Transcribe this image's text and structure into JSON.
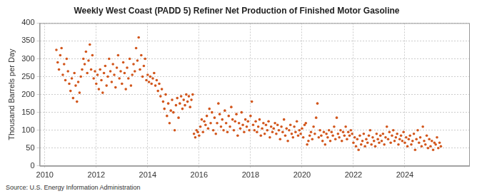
{
  "chart_data": {
    "type": "scatter",
    "title": "Weekly West Coast (PADD 5) Refiner Net Production of Finished Motor Gasoline",
    "y_label": "Thousand Barrels per Day",
    "source": "Source: U.S. Energy Information Administration",
    "color": "#d2561c",
    "marker": "circle",
    "grid": true,
    "xlim": [
      2009.8,
      2026.5
    ],
    "xticks": [
      2010,
      2012,
      2014,
      2016,
      2018,
      2020,
      2022,
      2024
    ],
    "ylim": [
      0,
      400
    ],
    "yticks": [
      0,
      50,
      100,
      150,
      200,
      250,
      300,
      350,
      400
    ],
    "x": [
      2010.45,
      2010.5,
      2010.55,
      2010.6,
      2010.65,
      2010.7,
      2010.75,
      2010.8,
      2010.85,
      2010.9,
      2010.95,
      2011.0,
      2011.05,
      2011.1,
      2011.15,
      2011.2,
      2011.25,
      2011.3,
      2011.35,
      2011.4,
      2011.45,
      2011.5,
      2011.55,
      2011.6,
      2011.65,
      2011.7,
      2011.75,
      2011.8,
      2011.85,
      2011.9,
      2011.95,
      2012.0,
      2012.05,
      2012.1,
      2012.15,
      2012.2,
      2012.25,
      2012.3,
      2012.35,
      2012.4,
      2012.45,
      2012.5,
      2012.55,
      2012.6,
      2012.65,
      2012.7,
      2012.75,
      2012.8,
      2012.85,
      2012.9,
      2012.95,
      2013.0,
      2013.05,
      2013.1,
      2013.15,
      2013.2,
      2013.25,
      2013.3,
      2013.35,
      2013.4,
      2013.45,
      2013.5,
      2013.55,
      2013.6,
      2013.65,
      2013.7,
      2013.75,
      2013.8,
      2013.85,
      2013.9,
      2013.95,
      2014.0,
      2014.05,
      2014.1,
      2014.15,
      2014.2,
      2014.25,
      2014.3,
      2014.35,
      2014.4,
      2014.45,
      2014.5,
      2014.55,
      2014.6,
      2014.65,
      2014.7,
      2014.75,
      2014.8,
      2014.85,
      2014.9,
      2014.95,
      2015.0,
      2015.05,
      2015.1,
      2015.15,
      2015.2,
      2015.25,
      2015.3,
      2015.35,
      2015.4,
      2015.45,
      2015.5,
      2015.55,
      2015.6,
      2015.65,
      2015.7,
      2015.75,
      2015.8,
      2015.85,
      2015.9,
      2015.95,
      2016.0,
      2016.05,
      2016.1,
      2016.15,
      2016.2,
      2016.25,
      2016.3,
      2016.35,
      2016.4,
      2016.45,
      2016.5,
      2016.55,
      2016.6,
      2016.65,
      2016.7,
      2016.75,
      2016.8,
      2016.85,
      2016.9,
      2016.95,
      2017.0,
      2017.05,
      2017.1,
      2017.15,
      2017.2,
      2017.25,
      2017.3,
      2017.35,
      2017.4,
      2017.45,
      2017.5,
      2017.55,
      2017.6,
      2017.65,
      2017.7,
      2017.75,
      2017.8,
      2017.85,
      2017.9,
      2017.95,
      2018.0,
      2018.05,
      2018.1,
      2018.15,
      2018.2,
      2018.25,
      2018.3,
      2018.35,
      2018.4,
      2018.45,
      2018.5,
      2018.55,
      2018.6,
      2018.65,
      2018.7,
      2018.75,
      2018.8,
      2018.85,
      2018.9,
      2018.95,
      2019.0,
      2019.05,
      2019.1,
      2019.15,
      2019.2,
      2019.25,
      2019.3,
      2019.35,
      2019.4,
      2019.45,
      2019.5,
      2019.55,
      2019.6,
      2019.65,
      2019.7,
      2019.75,
      2019.8,
      2019.85,
      2019.9,
      2019.95,
      2020.0,
      2020.05,
      2020.1,
      2020.15,
      2020.2,
      2020.25,
      2020.3,
      2020.35,
      2020.4,
      2020.45,
      2020.5,
      2020.55,
      2020.6,
      2020.65,
      2020.7,
      2020.75,
      2020.8,
      2020.85,
      2020.9,
      2020.95,
      2021.0,
      2021.05,
      2021.1,
      2021.15,
      2021.2,
      2021.25,
      2021.3,
      2021.35,
      2021.4,
      2021.45,
      2021.5,
      2021.55,
      2021.6,
      2021.65,
      2021.7,
      2021.75,
      2021.8,
      2021.85,
      2021.9,
      2021.95,
      2022.0,
      2022.05,
      2022.1,
      2022.15,
      2022.2,
      2022.25,
      2022.3,
      2022.35,
      2022.4,
      2022.45,
      2022.5,
      2022.55,
      2022.6,
      2022.65,
      2022.7,
      2022.75,
      2022.8,
      2022.85,
      2022.9,
      2022.95,
      2023.0,
      2023.05,
      2023.1,
      2023.15,
      2023.2,
      2023.25,
      2023.3,
      2023.35,
      2023.4,
      2023.45,
      2023.5,
      2023.55,
      2023.6,
      2023.65,
      2023.7,
      2023.75,
      2023.8,
      2023.85,
      2023.9,
      2023.95,
      2024.0,
      2024.05,
      2024.1,
      2024.15,
      2024.2,
      2024.25,
      2024.3,
      2024.35,
      2024.4,
      2024.45,
      2024.5,
      2024.55,
      2024.6,
      2024.65,
      2024.7,
      2024.75,
      2024.8,
      2024.85,
      2024.9,
      2024.95,
      2025.0,
      2025.05,
      2025.1,
      2025.15,
      2025.2,
      2025.25,
      2025.3,
      2025.35,
      2025.4
    ],
    "values": [
      325,
      290,
      270,
      310,
      330,
      255,
      285,
      240,
      300,
      265,
      230,
      210,
      245,
      190,
      260,
      225,
      180,
      235,
      205,
      250,
      270,
      300,
      285,
      320,
      260,
      295,
      340,
      270,
      310,
      245,
      265,
      230,
      255,
      215,
      270,
      240,
      205,
      260,
      280,
      225,
      250,
      300,
      265,
      235,
      285,
      255,
      220,
      275,
      310,
      245,
      265,
      230,
      290,
      260,
      215,
      275,
      245,
      300,
      225,
      255,
      285,
      265,
      330,
      295,
      360,
      270,
      310,
      250,
      280,
      300,
      240,
      255,
      235,
      250,
      230,
      245,
      260,
      225,
      240,
      210,
      230,
      195,
      215,
      180,
      160,
      200,
      140,
      175,
      120,
      155,
      185,
      150,
      100,
      170,
      190,
      135,
      175,
      195,
      160,
      185,
      170,
      200,
      180,
      195,
      165,
      185,
      200,
      90,
      80,
      100,
      95,
      85,
      110,
      130,
      95,
      125,
      115,
      140,
      105,
      160,
      120,
      150,
      100,
      135,
      90,
      120,
      175,
      145,
      110,
      130,
      100,
      155,
      120,
      95,
      140,
      110,
      165,
      130,
      100,
      125,
      145,
      85,
      120,
      105,
      150,
      115,
      95,
      130,
      110,
      125,
      100,
      140,
      180,
      115,
      100,
      125,
      95,
      110,
      130,
      85,
      105,
      120,
      90,
      115,
      100,
      125,
      80,
      110,
      95,
      105,
      120,
      90,
      115,
      100,
      75,
      110,
      95,
      130,
      85,
      105,
      70,
      100,
      115,
      90,
      80,
      110,
      95,
      125,
      85,
      100,
      90,
      105,
      80,
      115,
      120,
      60,
      70,
      85,
      95,
      75,
      110,
      90,
      135,
      175,
      80,
      100,
      85,
      70,
      95,
      60,
      90,
      80,
      100,
      70,
      95,
      85,
      110,
      75,
      135,
      90,
      80,
      100,
      70,
      95,
      85,
      110,
      75,
      95,
      85,
      100,
      90,
      65,
      80,
      55,
      75,
      45,
      85,
      60,
      70,
      90,
      55,
      75,
      65,
      85,
      100,
      60,
      80,
      70,
      55,
      90,
      75,
      65,
      85,
      70,
      90,
      60,
      80,
      110,
      75,
      95,
      65,
      85,
      100,
      70,
      80,
      90,
      60,
      75,
      85,
      70,
      95,
      65,
      80,
      55,
      75,
      85,
      60,
      70,
      90,
      45,
      75,
      100,
      65,
      80,
      55,
      110,
      70,
      60,
      85,
      50,
      75,
      55,
      70,
      45,
      65,
      60,
      80,
      50,
      65,
      55
    ]
  }
}
